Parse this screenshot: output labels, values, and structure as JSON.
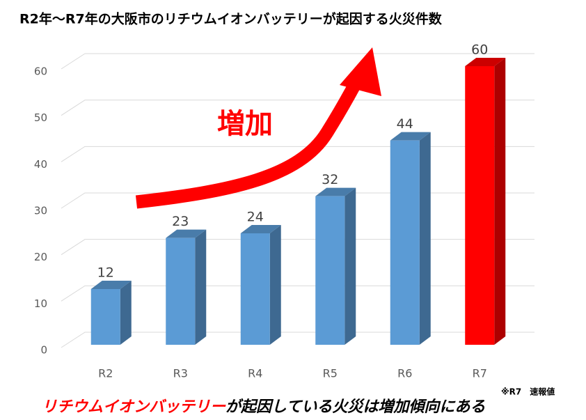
{
  "chart_data": {
    "type": "bar3d",
    "title": "R2年～R7年の大阪市のリチウムイオンバッテリーが起因する火災件数",
    "annotation": "増加",
    "note": "※R7　速報値",
    "footer": [
      "リチウムイオンバッテリー",
      "が起因している火災は増加傾向にある"
    ],
    "categories": [
      "R2",
      "R3",
      "R4",
      "R5",
      "R6",
      "R7"
    ],
    "values": [
      12,
      23,
      24,
      32,
      44,
      60
    ],
    "colors": [
      "#5b9bd5",
      "#5b9bd5",
      "#5b9bd5",
      "#5b9bd5",
      "#5b9bd5",
      "#ff0000"
    ],
    "ylim": [
      0,
      60
    ],
    "yticks": [
      0,
      10,
      20,
      30,
      40,
      50,
      60
    ],
    "grid": true
  }
}
